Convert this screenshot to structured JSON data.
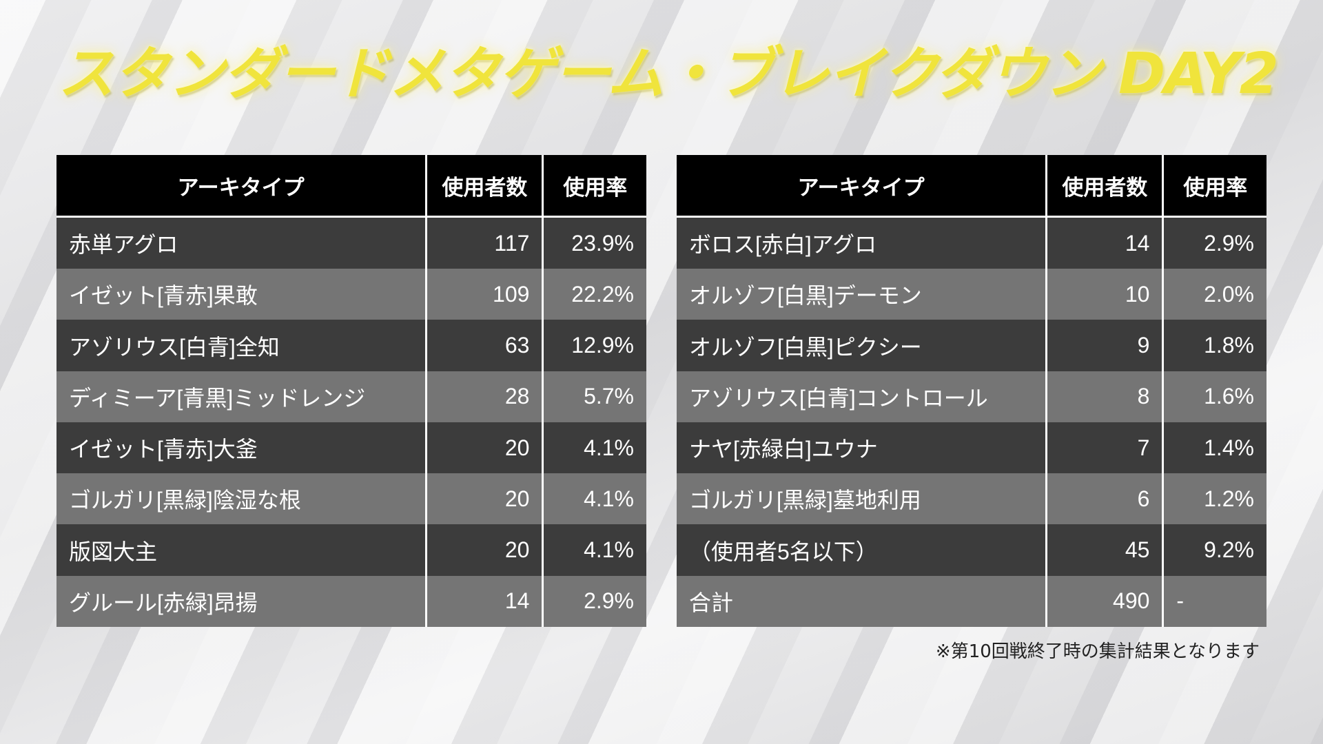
{
  "title": "スタンダードメタゲーム・ブレイクダウン DAY2",
  "headers": {
    "archetype": "アーキタイプ",
    "players": "使用者数",
    "rate": "使用率"
  },
  "left_table": [
    {
      "name": "赤単アグロ",
      "players": "117",
      "rate": "23.9%"
    },
    {
      "name": "イゼット[青赤]果敢",
      "players": "109",
      "rate": "22.2%"
    },
    {
      "name": "アゾリウス[白青]全知",
      "players": "63",
      "rate": "12.9%"
    },
    {
      "name": "ディミーア[青黒]ミッドレンジ",
      "players": "28",
      "rate": "5.7%"
    },
    {
      "name": "イゼット[青赤]大釜",
      "players": "20",
      "rate": "4.1%"
    },
    {
      "name": "ゴルガリ[黒緑]陰湿な根",
      "players": "20",
      "rate": "4.1%"
    },
    {
      "name": "版図大主",
      "players": "20",
      "rate": "4.1%"
    },
    {
      "name": "グルール[赤緑]昂揚",
      "players": "14",
      "rate": "2.9%"
    }
  ],
  "right_table": [
    {
      "name": "ボロス[赤白]アグロ",
      "players": "14",
      "rate": "2.9%"
    },
    {
      "name": "オルゾフ[白黒]デーモン",
      "players": "10",
      "rate": "2.0%"
    },
    {
      "name": "オルゾフ[白黒]ピクシー",
      "players": "9",
      "rate": "1.8%"
    },
    {
      "name": "アゾリウス[白青]コントロール",
      "players": "8",
      "rate": "1.6%"
    },
    {
      "name": "ナヤ[赤緑白]ユウナ",
      "players": "7",
      "rate": "1.4%"
    },
    {
      "name": "ゴルガリ[黒緑]墓地利用",
      "players": "6",
      "rate": "1.2%"
    },
    {
      "name": "（使用者5名以下）",
      "players": "45",
      "rate": "9.2%"
    },
    {
      "name": "合計",
      "players": "490",
      "rate": "-"
    }
  ],
  "footnote": "※第10回戦終了時の集計結果となります",
  "colors": {
    "title": "#f0e43c",
    "header_bg": "#000000",
    "row_dark": "#3c3c3c",
    "row_light": "#757575",
    "text": "#ffffff"
  }
}
